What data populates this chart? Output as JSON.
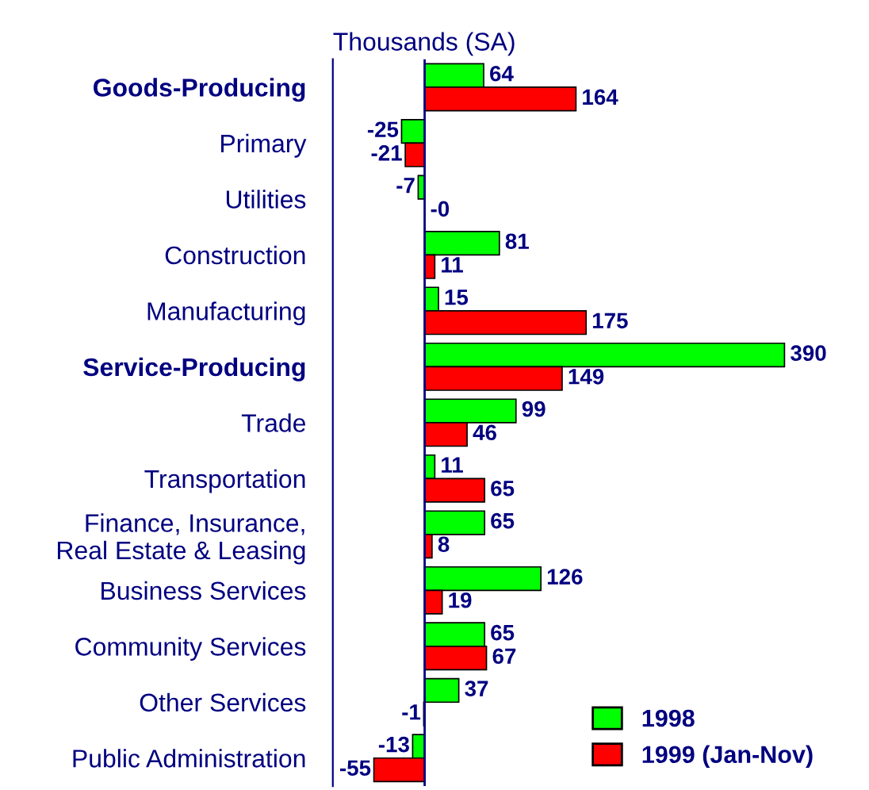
{
  "chart_data": {
    "type": "bar",
    "orientation": "horizontal",
    "title": "Thousands (SA)",
    "categories": [
      "Goods-Producing",
      "Primary",
      "Utilities",
      "Construction",
      "Manufacturing",
      "Service-Producing",
      "Trade",
      "Transportation",
      "Finance, Insurance,\nReal Estate & Leasing",
      "Business Services",
      "Community Services",
      "Other Services",
      "Public Administration"
    ],
    "series": [
      {
        "name": "1998",
        "color": "#00ff00",
        "values": [
          64,
          -25,
          -7,
          81,
          15,
          390,
          99,
          11,
          65,
          126,
          65,
          37,
          -13
        ],
        "value_labels": [
          "64",
          "-25",
          "-7",
          "81",
          "15",
          "390",
          "99",
          "11",
          "65",
          "126",
          "65",
          "37",
          "-13"
        ]
      },
      {
        "name": "1999 (Jan-Nov)",
        "color": "#ff0000",
        "values": [
          164,
          -21,
          0,
          11,
          175,
          149,
          46,
          65,
          8,
          19,
          67,
          -1,
          -55
        ],
        "value_labels": [
          "164",
          "-21",
          "-0",
          "11",
          "175",
          "149",
          "46",
          "65",
          "8",
          "19",
          "67",
          "-1",
          "-55"
        ]
      }
    ],
    "ref_lines": [
      {
        "axis": "x",
        "value": 0,
        "color": "#000080"
      }
    ],
    "legend": "bottom right",
    "grid": false
  }
}
